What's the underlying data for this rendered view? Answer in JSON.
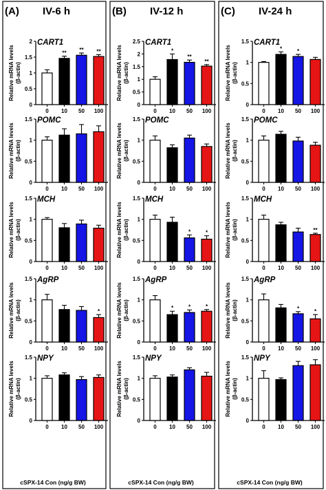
{
  "x_axis_title": "cSPX-14 Con (ng/g BW)",
  "y_axis_title_line1": "Relative mRNA levels",
  "y_axis_title_line2": "(β-actin)",
  "bar_colors": [
    "#ffffff",
    "#000000",
    "#1515e6",
    "#e61515"
  ],
  "panels": [
    {
      "letter": "(A)",
      "title": "IV-6 h"
    },
    {
      "letter": "(B)",
      "title": "IV-12 h"
    },
    {
      "letter": "(C)",
      "title": "IV-24 h"
    }
  ],
  "chart_data": [
    {
      "type": "bar",
      "panel": "A",
      "gene": "CART1",
      "categories": [
        "0",
        "10",
        "50",
        "100"
      ],
      "values": [
        1.0,
        1.46,
        1.56,
        1.52
      ],
      "errors": [
        0.1,
        0.07,
        0.07,
        0.06
      ],
      "significance": [
        "",
        "**",
        "**",
        "**"
      ],
      "ylim": [
        0,
        2.0
      ],
      "yticks": [
        0.0,
        0.5,
        1.0,
        1.5,
        2.0
      ]
    },
    {
      "type": "bar",
      "panel": "A",
      "gene": "POMC",
      "categories": [
        "0",
        "10",
        "50",
        "100"
      ],
      "values": [
        1.0,
        1.12,
        1.15,
        1.2
      ],
      "errors": [
        0.08,
        0.15,
        0.22,
        0.14
      ],
      "significance": [
        "",
        "",
        "",
        ""
      ],
      "ylim": [
        0,
        1.5
      ],
      "yticks": [
        0.0,
        0.5,
        1.0,
        1.5
      ]
    },
    {
      "type": "bar",
      "panel": "A",
      "gene": "MCH",
      "categories": [
        "0",
        "10",
        "50",
        "100"
      ],
      "values": [
        1.0,
        0.8,
        0.89,
        0.79
      ],
      "errors": [
        0.04,
        0.1,
        0.09,
        0.07
      ],
      "significance": [
        "",
        "",
        "",
        ""
      ],
      "ylim": [
        0,
        1.5
      ],
      "yticks": [
        0.0,
        0.5,
        1.0,
        1.5
      ]
    },
    {
      "type": "bar",
      "panel": "A",
      "gene": "AgRP",
      "categories": [
        "0",
        "10",
        "50",
        "100"
      ],
      "values": [
        1.0,
        0.77,
        0.75,
        0.58
      ],
      "errors": [
        0.13,
        0.1,
        0.09,
        0.07
      ],
      "significance": [
        "",
        "",
        "",
        "*"
      ],
      "ylim": [
        0,
        1.5
      ],
      "yticks": [
        0.0,
        0.5,
        1.0,
        1.5
      ]
    },
    {
      "type": "bar",
      "panel": "A",
      "gene": "NPY",
      "categories": [
        "0",
        "10",
        "50",
        "100"
      ],
      "values": [
        1.0,
        1.08,
        0.97,
        1.02
      ],
      "errors": [
        0.06,
        0.05,
        0.07,
        0.06
      ],
      "significance": [
        "",
        "",
        "",
        ""
      ],
      "ylim": [
        0,
        1.5
      ],
      "yticks": [
        0.0,
        0.5,
        1.0,
        1.5
      ]
    },
    {
      "type": "bar",
      "panel": "B",
      "gene": "CART1",
      "categories": [
        "0",
        "10",
        "50",
        "100"
      ],
      "values": [
        1.0,
        1.78,
        1.67,
        1.52
      ],
      "errors": [
        0.1,
        0.22,
        0.09,
        0.06
      ],
      "significance": [
        "",
        "*",
        "**",
        "**"
      ],
      "ylim": [
        0,
        2.5
      ],
      "yticks": [
        0.0,
        0.5,
        1.0,
        1.5,
        2.0,
        2.5
      ]
    },
    {
      "type": "bar",
      "panel": "B",
      "gene": "POMC",
      "categories": [
        "0",
        "10",
        "50",
        "100"
      ],
      "values": [
        1.0,
        0.82,
        1.05,
        0.85
      ],
      "errors": [
        0.1,
        0.07,
        0.07,
        0.06
      ],
      "significance": [
        "",
        "",
        "",
        ""
      ],
      "ylim": [
        0,
        1.5
      ],
      "yticks": [
        0.0,
        0.5,
        1.0,
        1.5
      ]
    },
    {
      "type": "bar",
      "panel": "B",
      "gene": "MCH",
      "categories": [
        "0",
        "10",
        "50",
        "100"
      ],
      "values": [
        1.0,
        0.93,
        0.56,
        0.53
      ],
      "errors": [
        0.1,
        0.12,
        0.07,
        0.08
      ],
      "significance": [
        "",
        "",
        "*",
        "*"
      ],
      "ylim": [
        0,
        1.5
      ],
      "yticks": [
        0.0,
        0.5,
        1.0,
        1.5
      ]
    },
    {
      "type": "bar",
      "panel": "B",
      "gene": "AgRP",
      "categories": [
        "0",
        "10",
        "50",
        "100"
      ],
      "values": [
        1.0,
        0.65,
        0.7,
        0.73
      ],
      "errors": [
        0.1,
        0.08,
        0.06,
        0.04
      ],
      "significance": [
        "",
        "*",
        "*",
        "*"
      ],
      "ylim": [
        0,
        1.5
      ],
      "yticks": [
        0.0,
        0.5,
        1.0,
        1.5
      ]
    },
    {
      "type": "bar",
      "panel": "B",
      "gene": "NPY",
      "categories": [
        "0",
        "10",
        "50",
        "100"
      ],
      "values": [
        1.0,
        1.03,
        1.2,
        1.05
      ],
      "errors": [
        0.06,
        0.05,
        0.05,
        0.09
      ],
      "significance": [
        "",
        "",
        "",
        ""
      ],
      "ylim": [
        0,
        1.5
      ],
      "yticks": [
        0.0,
        0.5,
        1.0,
        1.5
      ]
    },
    {
      "type": "bar",
      "panel": "C",
      "gene": "CART1",
      "categories": [
        "0",
        "10",
        "50",
        "100"
      ],
      "values": [
        1.0,
        1.19,
        1.14,
        1.07
      ],
      "errors": [
        0.02,
        0.06,
        0.05,
        0.05
      ],
      "significance": [
        "",
        "*",
        "*",
        ""
      ],
      "ylim": [
        0,
        1.5
      ],
      "yticks": [
        0.0,
        0.5,
        1.0,
        1.5
      ]
    },
    {
      "type": "bar",
      "panel": "C",
      "gene": "POMC",
      "categories": [
        "0",
        "10",
        "50",
        "100"
      ],
      "values": [
        1.0,
        1.14,
        0.98,
        0.88
      ],
      "errors": [
        0.1,
        0.07,
        0.09,
        0.07
      ],
      "significance": [
        "",
        "",
        "",
        ""
      ],
      "ylim": [
        0,
        1.5
      ],
      "yticks": [
        0.0,
        0.5,
        1.0,
        1.5
      ]
    },
    {
      "type": "bar",
      "panel": "C",
      "gene": "MCH",
      "categories": [
        "0",
        "10",
        "50",
        "100"
      ],
      "values": [
        1.0,
        0.87,
        0.7,
        0.64
      ],
      "errors": [
        0.1,
        0.06,
        0.09,
        0.03
      ],
      "significance": [
        "",
        "",
        "",
        "**"
      ],
      "ylim": [
        0,
        1.5
      ],
      "yticks": [
        0.0,
        0.5,
        1.0,
        1.5
      ]
    },
    {
      "type": "bar",
      "panel": "C",
      "gene": "AgRP",
      "categories": [
        "0",
        "10",
        "50",
        "100"
      ],
      "values": [
        1.0,
        0.81,
        0.67,
        0.55
      ],
      "errors": [
        0.14,
        0.08,
        0.05,
        0.1
      ],
      "significance": [
        "",
        "",
        "*",
        "*"
      ],
      "ylim": [
        0,
        1.5
      ],
      "yticks": [
        0.0,
        0.5,
        1.0,
        1.5
      ]
    },
    {
      "type": "bar",
      "panel": "C",
      "gene": "NPY",
      "categories": [
        "0",
        "10",
        "50",
        "100"
      ],
      "values": [
        1.0,
        0.97,
        1.3,
        1.32
      ],
      "errors": [
        0.18,
        0.04,
        0.1,
        0.12
      ],
      "significance": [
        "",
        "",
        "",
        ""
      ],
      "ylim": [
        0,
        1.5
      ],
      "yticks": [
        0.0,
        0.5,
        1.0,
        1.5
      ]
    }
  ]
}
